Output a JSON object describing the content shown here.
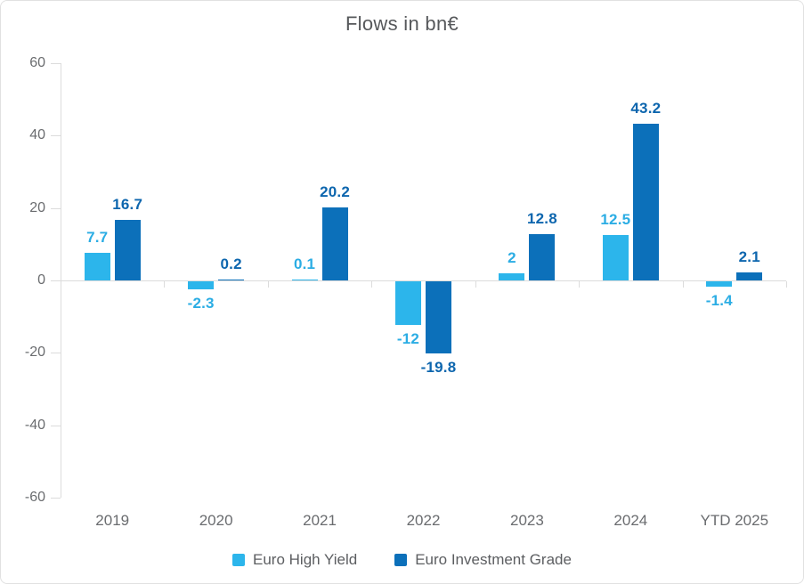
{
  "title": "Flows in bn€",
  "colors": {
    "axis_line": "#dcdcdc",
    "axis_text": "#6a6c6f",
    "title_text": "#56585b",
    "legend_text": "#5c5e61",
    "high_yield": "#2cb5eb",
    "investment_grade": "#0c70ba",
    "high_yield_label": "#2bade4",
    "investment_grade_label": "#0d66ae"
  },
  "chart_data": {
    "type": "bar",
    "title": "Flows in bn€",
    "categories": [
      "2019",
      "2020",
      "2021",
      "2022",
      "2023",
      "2024",
      "YTD 2025"
    ],
    "series": [
      {
        "name": "Euro High Yield",
        "color": "#2cb5eb",
        "label_color": "#2bade4",
        "values": [
          7.7,
          -2.3,
          0.1,
          -12,
          2,
          12.5,
          -1.4
        ],
        "data_labels": [
          "7.7",
          "-2.3",
          "0.1",
          "-12",
          "2",
          "12.5",
          "-1.4"
        ]
      },
      {
        "name": "Euro Investment Grade",
        "color": "#0c70ba",
        "label_color": "#0d66ae",
        "values": [
          16.7,
          0.2,
          20.2,
          -19.8,
          12.8,
          43.2,
          2.1
        ],
        "data_labels": [
          "16.7",
          "0.2",
          "20.2",
          "-19.8",
          "12.8",
          "43.2",
          "2.1"
        ]
      }
    ],
    "xlabel": "",
    "ylabel": "",
    "ylim": [
      -60,
      60
    ],
    "yticks": [
      60,
      40,
      20,
      0,
      -20,
      -40,
      -60
    ],
    "grid": false,
    "legend_position": "bottom"
  }
}
